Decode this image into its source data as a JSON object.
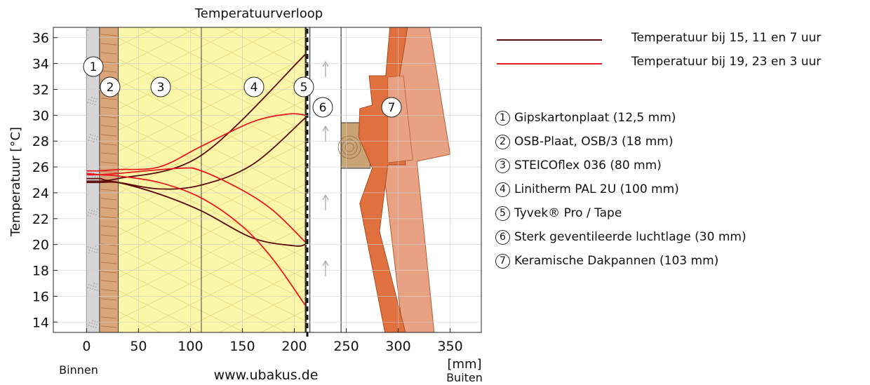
{
  "chart_data": {
    "type": "line",
    "title": "Temperatuurverloop",
    "ylabel": "Temperatuur [°C]",
    "xunit": "[mm]",
    "inside_label": "Binnen",
    "outside_label": "Buiten",
    "watermark": "www.ubakus.de",
    "xlim": [
      -32,
      380
    ],
    "ylim": [
      13.2,
      36.8
    ],
    "xticks": [
      0,
      50,
      100,
      150,
      200,
      250,
      300,
      350
    ],
    "yticks": [
      14,
      16,
      18,
      20,
      22,
      24,
      26,
      28,
      30,
      32,
      34,
      36
    ],
    "grid": true,
    "layers": [
      {
        "num": "1",
        "name": "Gipskartonplaat (12,5 mm)",
        "from": 0,
        "to": 12.5,
        "color": "#d6d6d6"
      },
      {
        "num": "2",
        "name": "OSB-Plaat, OSB/3 (18 mm)",
        "from": 12.5,
        "to": 30.5,
        "color": "#dba57a"
      },
      {
        "num": "3",
        "name": "STEICOflex 036 (80 mm)",
        "from": 30.5,
        "to": 110.5,
        "color": "#fcf6a8"
      },
      {
        "num": "4",
        "name": "Linitherm PAL 2U (100 mm)",
        "from": 110.5,
        "to": 210.5,
        "color": "#fcf6a8"
      },
      {
        "num": "5",
        "name": "Tyvek® Pro / Tape",
        "from": 210.5,
        "to": 211.5,
        "color": "#111111"
      },
      {
        "num": "6",
        "name": "Sterk geventileerde luchtlage (30 mm)",
        "from": 215,
        "to": 245,
        "color": "#ffffff"
      },
      {
        "num": "7",
        "name": "Keramische Dakpannen (103 mm)",
        "from": 245,
        "to": 348,
        "color": "#e0703e"
      }
    ],
    "series": [
      {
        "name": "Temperatuur bij 15, 11 en 7 uur",
        "color": "#5c0a0a",
        "lines": [
          [
            [
              0,
              25.1
            ],
            [
              12.5,
              25.1
            ],
            [
              30.5,
              25.1
            ],
            [
              110.5,
              26.9
            ],
            [
              210.5,
              34.7
            ]
          ],
          [
            [
              0,
              24.8
            ],
            [
              12.5,
              24.8
            ],
            [
              30.5,
              24.8
            ],
            [
              70,
              24.3
            ],
            [
              110.5,
              24.6
            ],
            [
              160,
              26.2
            ],
            [
              210.5,
              29.8
            ]
          ],
          [
            [
              0,
              24.9
            ],
            [
              12.5,
              24.9
            ],
            [
              30.5,
              24.8
            ],
            [
              70,
              23.9
            ],
            [
              110.5,
              22.6
            ],
            [
              160,
              20.5
            ],
            [
              200,
              19.9
            ],
            [
              210.5,
              20.0
            ]
          ]
        ]
      },
      {
        "name": "Temperatuur bij 19, 23 en 3 uur",
        "color": "#e8191f",
        "lines": [
          [
            [
              0,
              25.7
            ],
            [
              12.5,
              25.7
            ],
            [
              30.5,
              25.8
            ],
            [
              70,
              26.0
            ],
            [
              110.5,
              27.6
            ],
            [
              160,
              29.5
            ],
            [
              195,
              30.1
            ],
            [
              210.5,
              30.0
            ]
          ],
          [
            [
              0,
              25.4
            ],
            [
              12.5,
              25.4
            ],
            [
              30.5,
              25.5
            ],
            [
              90,
              25.9
            ],
            [
              110.5,
              25.7
            ],
            [
              150,
              24.2
            ],
            [
              180,
              22.6
            ],
            [
              210.5,
              20.2
            ]
          ],
          [
            [
              0,
              25.5
            ],
            [
              12.5,
              25.4
            ],
            [
              30.5,
              25.3
            ],
            [
              70,
              24.8
            ],
            [
              110.5,
              23.6
            ],
            [
              150,
              21.4
            ],
            [
              180,
              18.8
            ],
            [
              210.5,
              15.3
            ]
          ]
        ]
      }
    ]
  }
}
